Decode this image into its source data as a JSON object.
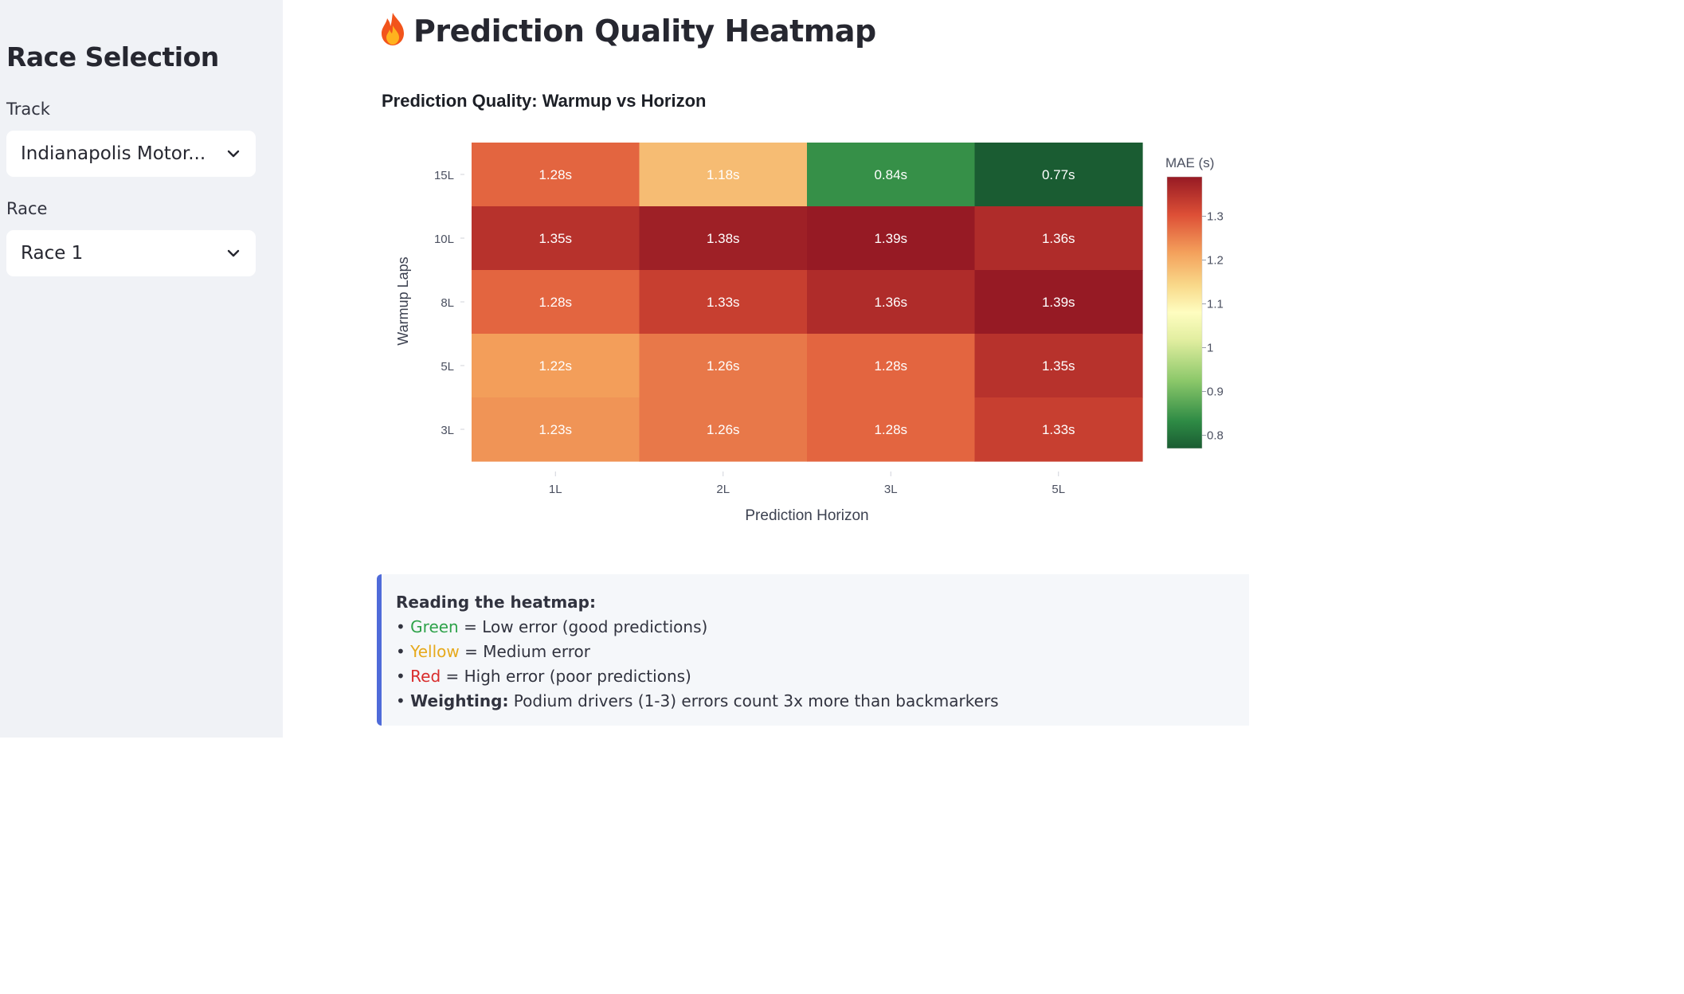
{
  "sidebar": {
    "title": "Race Selection",
    "track_label": "Track",
    "track_value": "Indianapolis Motor...",
    "race_label": "Race",
    "race_value": "Race 1"
  },
  "page": {
    "icon": "fire-icon",
    "title": "Prediction Quality Heatmap"
  },
  "chart_data": {
    "type": "heatmap",
    "title": "Prediction Quality: Warmup vs Horizon",
    "xlabel": "Prediction Horizon",
    "ylabel": "Warmup Laps",
    "x": [
      "1L",
      "2L",
      "3L",
      "5L"
    ],
    "y": [
      "15L",
      "10L",
      "8L",
      "5L",
      "3L"
    ],
    "z": [
      [
        1.28,
        1.18,
        0.84,
        0.77
      ],
      [
        1.35,
        1.38,
        1.39,
        1.36
      ],
      [
        1.28,
        1.33,
        1.36,
        1.39
      ],
      [
        1.22,
        1.26,
        1.28,
        1.35
      ],
      [
        1.23,
        1.26,
        1.28,
        1.33
      ]
    ],
    "cell_labels": [
      [
        "1.28s",
        "1.18s",
        "0.84s",
        "0.77s"
      ],
      [
        "1.35s",
        "1.38s",
        "1.39s",
        "1.36s"
      ],
      [
        "1.28s",
        "1.33s",
        "1.36s",
        "1.39s"
      ],
      [
        "1.22s",
        "1.26s",
        "1.28s",
        "1.35s"
      ],
      [
        "1.23s",
        "1.26s",
        "1.28s",
        "1.33s"
      ]
    ],
    "colorscale": "RdYlGn reversed",
    "zrange": [
      0.77,
      1.39
    ],
    "colorbar": {
      "title": "MAE (s)",
      "ticks": [
        0.8,
        0.9,
        1.0,
        1.1,
        1.2,
        1.3
      ],
      "tick_labels": [
        "0.8",
        "0.9",
        "1",
        "1.1",
        "1.2",
        "1.3"
      ]
    }
  },
  "info": {
    "heading": "Reading the heatmap:",
    "bullet": "•",
    "green_word": "Green",
    "green_text": " = Low error (good predictions)",
    "yellow_word": "Yellow",
    "yellow_text": " = Medium error",
    "red_word": "Red",
    "red_text": " = High error (poor predictions)",
    "weighting_label": "Weighting:",
    "weighting_text": " Podium drivers (1-3) errors count 3x more than backmarkers"
  },
  "colors": {
    "sidebar_bg": "#f0f2f6",
    "accent_border": "#4f6bd9",
    "green": "#2ea24a",
    "yellow": "#e6a91c",
    "red": "#d92c2c"
  }
}
